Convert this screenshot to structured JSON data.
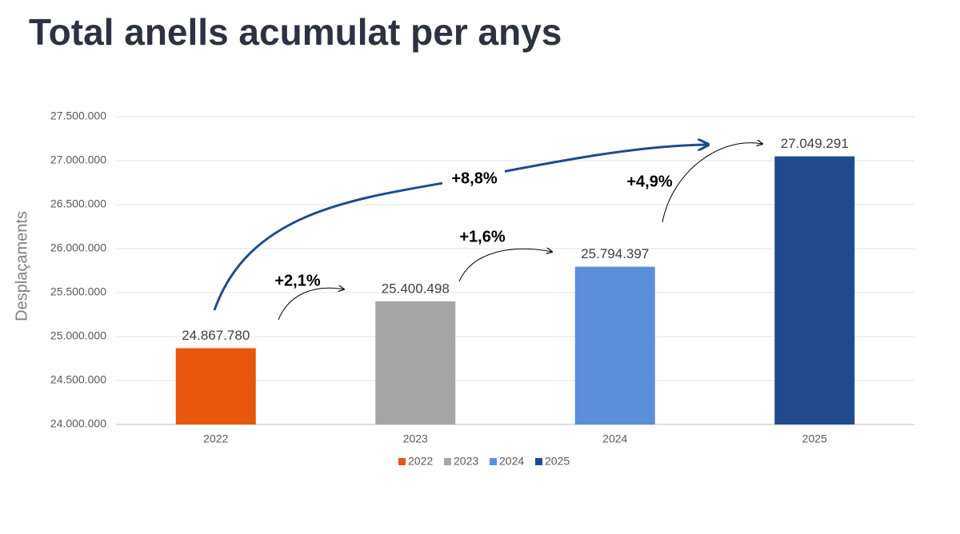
{
  "chart_data": {
    "type": "bar",
    "title": "Total anells acumulat per anys",
    "y_label": "Desplaçaments",
    "categories": [
      "2022",
      "2023",
      "2024",
      "2025"
    ],
    "values": [
      24867780,
      25400498,
      25794397,
      27049291
    ],
    "value_labels": [
      "24.867.780",
      "25.400.498",
      "25.794.397",
      "27.049.291"
    ],
    "colors": [
      "#e8580c",
      "#a5a5a5",
      "#5b8fdc",
      "#1f4b8e"
    ],
    "ylim": [
      24000000,
      27500000
    ],
    "yticks": [
      {
        "value": 24000000,
        "label": "24.000.000"
      },
      {
        "value": 24500000,
        "label": "24.500.000"
      },
      {
        "value": 25000000,
        "label": "25.000.000"
      },
      {
        "value": 25500000,
        "label": "25.500.000"
      },
      {
        "value": 26000000,
        "label": "26.000.000"
      },
      {
        "value": 26500000,
        "label": "26.500.000"
      },
      {
        "value": 27000000,
        "label": "27.000.000"
      },
      {
        "value": 27500000,
        "label": "27.500.000"
      }
    ],
    "grid": true,
    "annotations": [
      "+2,1%",
      "+1,6%",
      "+4,9%",
      "+8,8%"
    ]
  }
}
